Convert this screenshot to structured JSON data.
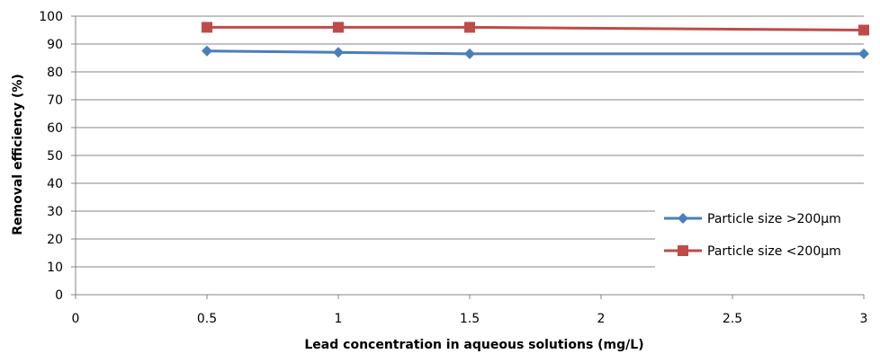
{
  "chart_data": {
    "type": "line",
    "xlabel": "Lead concentration in aqueous solutions (mg/L)",
    "ylabel": "Removal efficiency (%)",
    "xlim": [
      0,
      3
    ],
    "ylim": [
      0,
      100
    ],
    "x_ticks": [
      "0",
      "0.5",
      "1",
      "1.5",
      "2",
      "2.5",
      "3"
    ],
    "y_ticks": [
      "0",
      "10",
      "20",
      "30",
      "40",
      "50",
      "60",
      "70",
      "80",
      "90",
      "100"
    ],
    "grid": "horizontal",
    "legend_position": "bottom-right",
    "series": [
      {
        "name": "Particle size >200µm",
        "color": "#4a7ebb",
        "marker": "diamond",
        "x": [
          0.5,
          1,
          1.5,
          3
        ],
        "y": [
          87.5,
          87,
          86.5,
          86.5
        ]
      },
      {
        "name": "Particle size <200µm",
        "color": "#be4b48",
        "marker": "square",
        "x": [
          0.5,
          1,
          1.5,
          3
        ],
        "y": [
          96,
          96,
          96,
          95
        ]
      }
    ]
  }
}
